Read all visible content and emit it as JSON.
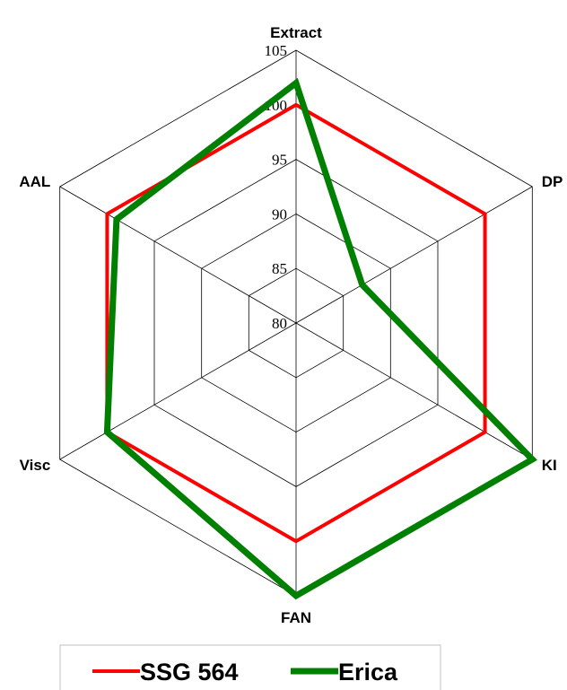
{
  "chart_data": {
    "type": "radar",
    "axes": [
      "Extract",
      "DP",
      "KI",
      "FAN",
      "Visc",
      "AAL"
    ],
    "rlim": [
      80,
      105
    ],
    "ticks": [
      80,
      85,
      90,
      95,
      100,
      105
    ],
    "tick_labels": [
      "80",
      "85",
      "90",
      "95",
      "100",
      "105"
    ],
    "grid": true,
    "legend_position": "bottom",
    "series": [
      {
        "name": "SSG 564",
        "color": "#ff0000",
        "values": [
          100,
          100,
          100,
          100,
          100,
          100
        ]
      },
      {
        "name": "Erica",
        "color": "#008000",
        "values": [
          102,
          87,
          105,
          105,
          100,
          99
        ]
      }
    ]
  }
}
